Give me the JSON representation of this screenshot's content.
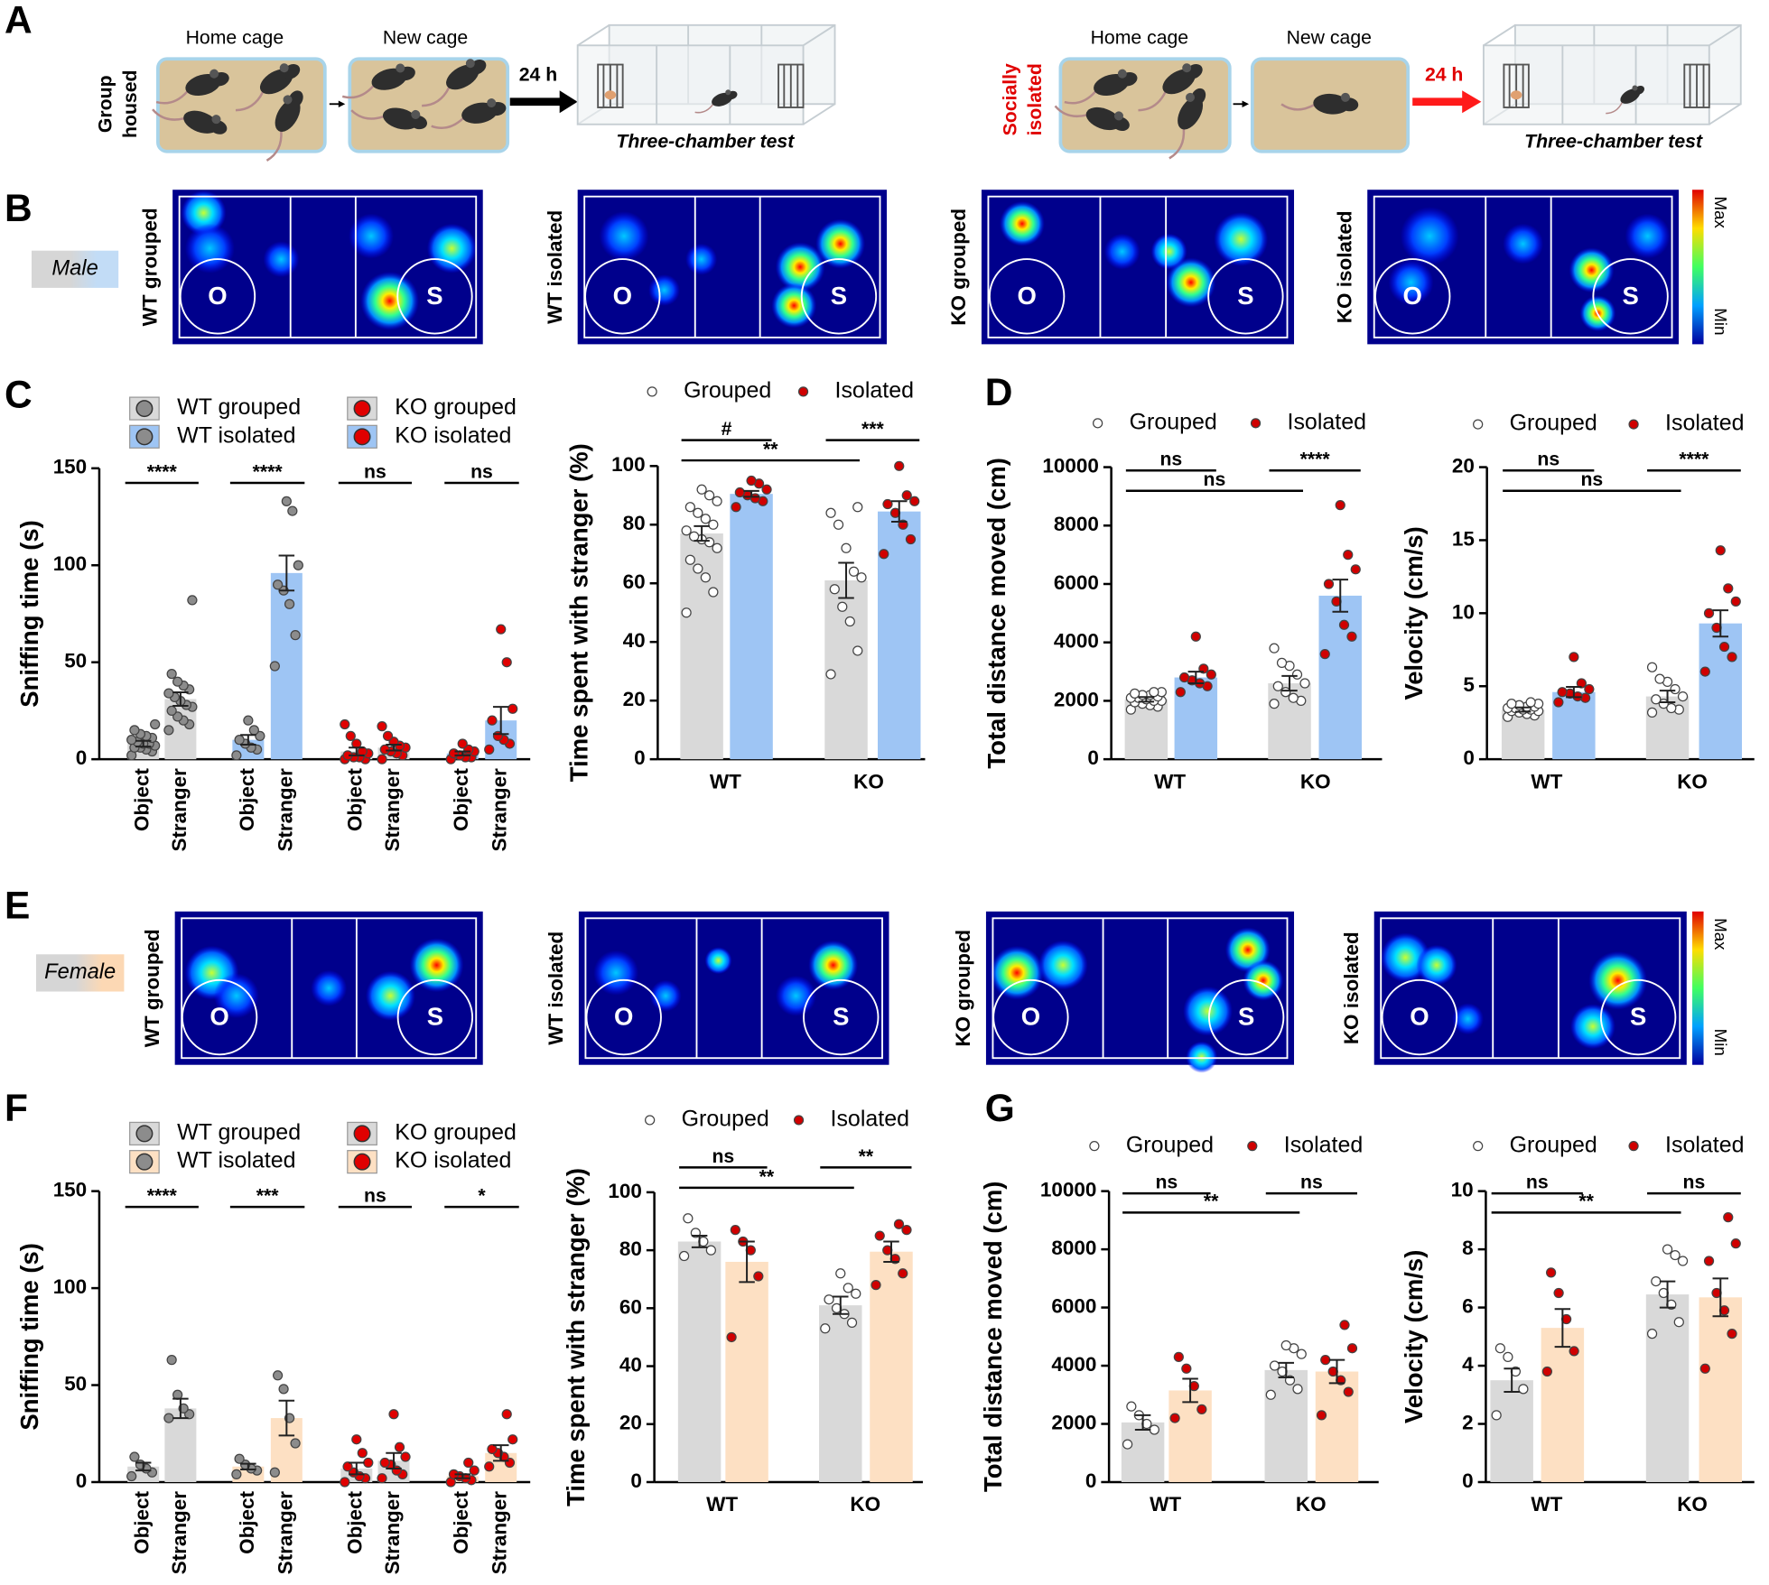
{
  "panel_labels": [
    "A",
    "B",
    "C",
    "D",
    "E",
    "F",
    "G"
  ],
  "schematic": [
    {
      "group_lines": [
        "Group",
        "housed"
      ],
      "cage1": "Home cage",
      "cage2": "New cage",
      "duration": "24 h",
      "test": "Three-chamber test"
    },
    {
      "group_lines": [
        "Socially",
        "isolated"
      ],
      "cage1": "Home cage",
      "cage2": "New cage",
      "duration": "24 h",
      "test": "Three-chamber test"
    }
  ],
  "heatmaps": [
    {
      "sex": "Male",
      "maps": [
        "WT grouped",
        "WT isolated",
        "KO grouped",
        "KO isolated"
      ],
      "object": "O",
      "stranger": "S",
      "max": "Max",
      "min": "Min"
    },
    {
      "sex": "Female",
      "maps": [
        "WT grouped",
        "WT isolated",
        "KO grouped",
        "KO isolated"
      ],
      "object": "O",
      "stranger": "S",
      "max": "Max",
      "min": "Min"
    }
  ],
  "chart_data": [
    {
      "type": "bar",
      "ylabel": "Sniffing time (s)",
      "categories": [
        "Object",
        "Stranger"
      ],
      "ylim": [
        0,
        150
      ],
      "yticks": [
        0,
        50,
        100,
        150
      ],
      "series": [
        {
          "name": "WT grouped",
          "color": "#d9d9d9",
          "point_color": "#8c8c8c",
          "values": [
            8,
            31
          ],
          "errors": [
            1.5,
            3.5
          ],
          "points": [
            [
              2,
              4,
              5,
              6,
              6,
              7,
              8,
              8,
              9,
              10,
              11,
              12,
              13,
              15,
              18
            ],
            [
              15,
              18,
              20,
              22,
              25,
              27,
              28,
              30,
              32,
              34,
              36,
              38,
              40,
              44,
              82
            ]
          ]
        },
        {
          "name": "WT isolated",
          "color": "#9ec5f4",
          "point_color": "#8c8c8c",
          "values": [
            10,
            96
          ],
          "errors": [
            2.5,
            9
          ],
          "points": [
            [
              2,
              5,
              6,
              8,
              10,
              12,
              15,
              20
            ],
            [
              48,
              64,
              80,
              87,
              90,
              100,
              128,
              133
            ]
          ]
        },
        {
          "name": "KO grouped",
          "color": "#d9d9d9",
          "point_color": "#e00000",
          "values": [
            4,
            6
          ],
          "errors": [
            2,
            1.5
          ],
          "points": [
            [
              0,
              0,
              1,
              1,
              2,
              3,
              4,
              8,
              12,
              18
            ],
            [
              0,
              2,
              3,
              4,
              5,
              6,
              7,
              9,
              12,
              17
            ]
          ]
        },
        {
          "name": "KO isolated",
          "color": "#9ec5f4",
          "point_color": "#e00000",
          "values": [
            3,
            20
          ],
          "errors": [
            1,
            7
          ],
          "points": [
            [
              0,
              1,
              1,
              2,
              3,
              4,
              5,
              8
            ],
            [
              5,
              8,
              10,
              12,
              20,
              26,
              50,
              67
            ]
          ]
        }
      ],
      "significance": [
        "****",
        "****",
        "ns",
        "ns"
      ]
    },
    {
      "type": "bar",
      "ylabel": "Time spent with stranger (%)",
      "categories": [
        "WT",
        "KO"
      ],
      "ylim": [
        0,
        100
      ],
      "yticks": [
        0,
        20,
        40,
        60,
        80,
        100
      ],
      "series": [
        {
          "name": "Grouped",
          "color": "#d9d9d9",
          "point_color": "#ffffff",
          "values": [
            77,
            61
          ],
          "errors": [
            2.5,
            6
          ],
          "points": [
            [
              50,
              57,
              62,
              65,
              68,
              72,
              74,
              75,
              76,
              78,
              80,
              82,
              84,
              86,
              88,
              90,
              92
            ],
            [
              29,
              37,
              47,
              52,
              58,
              62,
              64,
              72,
              80,
              84,
              86
            ]
          ]
        },
        {
          "name": "Isolated",
          "color": "#9ec5f4",
          "point_color": "#d00000",
          "values": [
            90.5,
            84.5
          ],
          "errors": [
            1,
            3.5
          ],
          "points": [
            [
              86,
              88,
              89,
              90,
              91,
              92,
              94,
              95
            ],
            [
              70,
              75,
              80,
              84,
              87,
              88,
              90,
              100
            ]
          ]
        }
      ],
      "significance": [
        "#",
        "***",
        "**"
      ]
    },
    {
      "type": "bar",
      "ylabel": "Total distance moved (cm)",
      "categories": [
        "WT",
        "KO"
      ],
      "ylim": [
        0,
        10000
      ],
      "yticks": [
        0,
        2000,
        4000,
        6000,
        8000,
        10000
      ],
      "series": [
        {
          "name": "Grouped",
          "color": "#d9d9d9",
          "point_color": "#ffffff",
          "values": [
            2050,
            2600
          ],
          "errors": [
            80,
            250
          ],
          "points": [
            [
              1700,
              1800,
              1850,
              1900,
              1950,
              2000,
              2000,
              2050,
              2100,
              2100,
              2150,
              2200,
              2200,
              2250,
              2300,
              2300
            ],
            [
              1900,
              2000,
              2100,
              2300,
              2500,
              2600,
              2900,
              3200,
              3300,
              3800
            ]
          ]
        },
        {
          "name": "Isolated",
          "color": "#9ec5f4",
          "point_color": "#d00000",
          "values": [
            2800,
            5600
          ],
          "errors": [
            200,
            550
          ],
          "points": [
            [
              2300,
              2500,
              2600,
              2700,
              2800,
              2900,
              3100,
              4200
            ],
            [
              3600,
              4200,
              4600,
              5400,
              6000,
              6500,
              7000,
              8700
            ]
          ]
        }
      ],
      "significance": [
        "ns",
        "****",
        "ns"
      ]
    },
    {
      "type": "bar",
      "ylabel": "Velocity (cm/s)",
      "categories": [
        "WT",
        "KO"
      ],
      "ylim": [
        0,
        20
      ],
      "yticks": [
        0,
        5,
        10,
        15,
        20
      ],
      "series": [
        {
          "name": "Grouped",
          "color": "#d9d9d9",
          "point_color": "#ffffff",
          "values": [
            3.4,
            4.3
          ],
          "errors": [
            0.15,
            0.4
          ],
          "points": [
            [
              2.9,
              3.0,
              3.1,
              3.2,
              3.3,
              3.3,
              3.4,
              3.4,
              3.5,
              3.5,
              3.6,
              3.6,
              3.7,
              3.8,
              3.8,
              3.9
            ],
            [
              3.2,
              3.4,
              3.5,
              3.8,
              4.1,
              4.3,
              4.8,
              5.3,
              5.5,
              6.3
            ]
          ]
        },
        {
          "name": "Isolated",
          "color": "#9ec5f4",
          "point_color": "#d00000",
          "values": [
            4.6,
            9.3
          ],
          "errors": [
            0.35,
            0.9
          ],
          "points": [
            [
              3.9,
              4.2,
              4.3,
              4.5,
              4.6,
              4.8,
              5.2,
              7.0
            ],
            [
              6.0,
              7.0,
              7.7,
              9.0,
              10.0,
              10.8,
              11.7,
              14.3
            ]
          ]
        }
      ],
      "significance": [
        "ns",
        "****",
        "ns"
      ]
    },
    {
      "type": "bar",
      "ylabel": "Sniffing time (s)",
      "categories": [
        "Object",
        "Stranger"
      ],
      "ylim": [
        0,
        150
      ],
      "yticks": [
        0,
        50,
        100,
        150
      ],
      "series": [
        {
          "name": "WT grouped",
          "color": "#d9d9d9",
          "point_color": "#8c8c8c",
          "values": [
            8,
            38
          ],
          "errors": [
            2,
            5
          ],
          "points": [
            [
              3,
              5,
              7,
              9,
              13
            ],
            [
              33,
              35,
              38,
              45,
              63
            ]
          ]
        },
        {
          "name": "WT isolated",
          "color": "#fde0c3",
          "point_color": "#8c8c8c",
          "values": [
            8,
            33
          ],
          "errors": [
            1.5,
            9
          ],
          "points": [
            [
              4,
              6,
              7,
              9,
              12
            ],
            [
              5,
              20,
              33,
              48,
              55
            ]
          ]
        },
        {
          "name": "KO grouped",
          "color": "#d9d9d9",
          "point_color": "#e00000",
          "values": [
            7,
            11
          ],
          "errors": [
            3,
            4
          ],
          "points": [
            [
              0,
              2,
              3,
              5,
              8,
              10,
              15,
              22
            ],
            [
              2,
              4,
              6,
              9,
              10,
              13,
              18,
              35
            ]
          ]
        },
        {
          "name": "KO isolated",
          "color": "#fde0c3",
          "point_color": "#e00000",
          "values": [
            3,
            15
          ],
          "errors": [
            1,
            4
          ],
          "points": [
            [
              0,
              1,
              2,
              3,
              4,
              6,
              10
            ],
            [
              8,
              10,
              13,
              15,
              17,
              22,
              35
            ]
          ]
        }
      ],
      "significance": [
        "****",
        "***",
        "ns",
        "*"
      ]
    },
    {
      "type": "bar",
      "ylabel": "Time spent with stranger (%)",
      "categories": [
        "WT",
        "KO"
      ],
      "ylim": [
        0,
        100
      ],
      "yticks": [
        0,
        20,
        40,
        60,
        80,
        100
      ],
      "series": [
        {
          "name": "Grouped",
          "color": "#d9d9d9",
          "point_color": "#ffffff",
          "values": [
            83,
            61
          ],
          "errors": [
            2,
            3
          ],
          "points": [
            [
              78,
              80,
              83,
              86,
              91
            ],
            [
              53,
              55,
              58,
              60,
              63,
              65,
              67,
              72
            ]
          ]
        },
        {
          "name": "Isolated",
          "color": "#fde0c3",
          "point_color": "#d00000",
          "values": [
            76,
            79.5
          ],
          "errors": [
            7,
            3.5
          ],
          "points": [
            [
              50,
              71,
              80,
              83,
              87
            ],
            [
              68,
              72,
              77,
              80,
              85,
              87,
              89
            ]
          ]
        }
      ],
      "significance": [
        "ns",
        "**",
        "**"
      ]
    },
    {
      "type": "bar",
      "ylabel": "Total distance moved (cm)",
      "categories": [
        "WT",
        "KO"
      ],
      "ylim": [
        0,
        10000
      ],
      "yticks": [
        0,
        2000,
        4000,
        6000,
        8000,
        10000
      ],
      "series": [
        {
          "name": "Grouped",
          "color": "#d9d9d9",
          "point_color": "#ffffff",
          "values": [
            2050,
            3850
          ],
          "errors": [
            250,
            250
          ],
          "points": [
            [
              1300,
              1800,
              2000,
              2300,
              2600
            ],
            [
              3000,
              3200,
              3500,
              3800,
              4000,
              4400,
              4600,
              4700
            ]
          ]
        },
        {
          "name": "Isolated",
          "color": "#fde0c3",
          "point_color": "#d00000",
          "values": [
            3150,
            3800
          ],
          "errors": [
            400,
            400
          ],
          "points": [
            [
              2200,
              2500,
              3300,
              3900,
              4300
            ],
            [
              2300,
              3100,
              3500,
              3800,
              4200,
              4600,
              5400
            ]
          ]
        }
      ],
      "significance": [
        "ns",
        "ns",
        "**"
      ]
    },
    {
      "type": "bar",
      "ylabel": "Velocity (cm/s)",
      "categories": [
        "WT",
        "KO"
      ],
      "ylim": [
        0,
        10
      ],
      "yticks": [
        0,
        2,
        4,
        6,
        8,
        10
      ],
      "series": [
        {
          "name": "Grouped",
          "color": "#d9d9d9",
          "point_color": "#ffffff",
          "values": [
            3.5,
            6.45
          ],
          "errors": [
            0.4,
            0.45
          ],
          "points": [
            [
              2.3,
              3.2,
              3.8,
              4.3,
              4.6
            ],
            [
              5.1,
              5.5,
              6.1,
              6.5,
              6.9,
              7.6,
              7.8,
              8.0
            ]
          ]
        },
        {
          "name": "Isolated",
          "color": "#fde0c3",
          "point_color": "#d00000",
          "values": [
            5.3,
            6.35
          ],
          "errors": [
            0.65,
            0.65
          ],
          "points": [
            [
              3.8,
              4.5,
              5.6,
              6.5,
              7.2
            ],
            [
              3.9,
              5.1,
              5.9,
              6.5,
              7.6,
              8.2,
              9.1
            ]
          ]
        }
      ],
      "significance": [
        "ns",
        "ns",
        "**"
      ]
    }
  ]
}
